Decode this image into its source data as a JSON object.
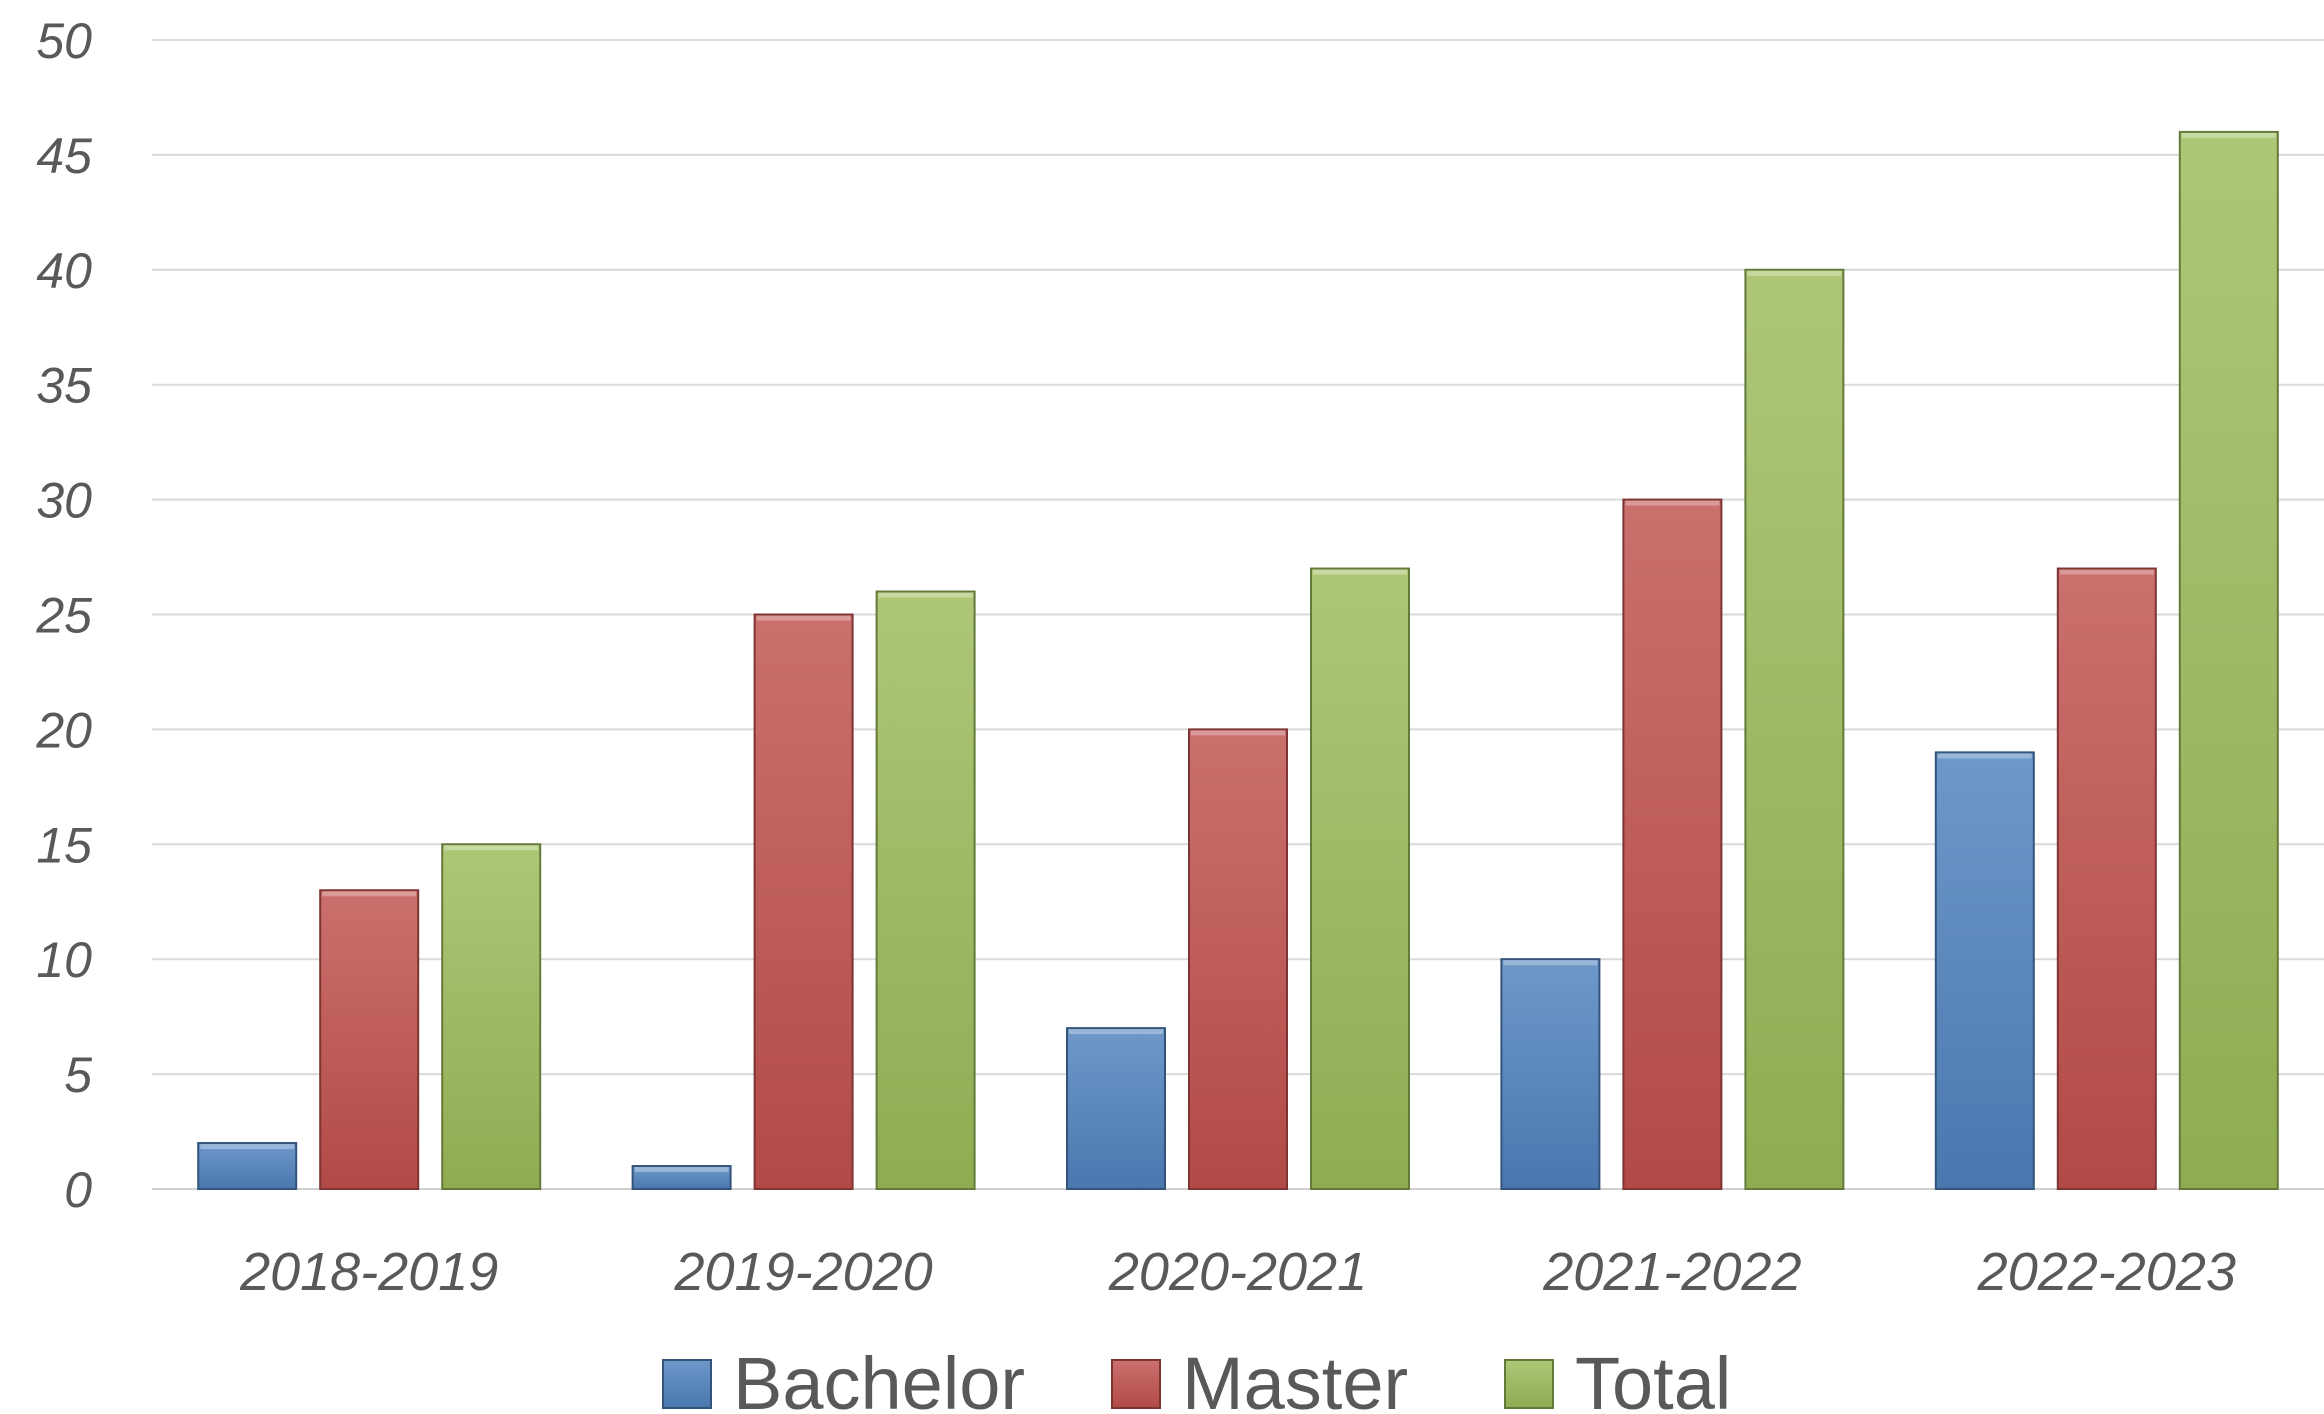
{
  "chart_data": {
    "type": "bar",
    "title": "",
    "xlabel": "",
    "ylabel": "",
    "categories": [
      "2018-2019",
      "2019-2020",
      "2020-2021",
      "2021-2022",
      "2022-2023"
    ],
    "series": [
      {
        "name": "Bachelor",
        "values": [
          2,
          1,
          7,
          10,
          19
        ],
        "color": "#4f81bd"
      },
      {
        "name": "Master",
        "values": [
          13,
          25,
          20,
          30,
          27
        ],
        "color": "#c0504d"
      },
      {
        "name": "Total",
        "values": [
          15,
          26,
          27,
          40,
          46
        ],
        "color": "#9bbb59"
      }
    ],
    "ylim": [
      0,
      50
    ],
    "yticks": [
      0,
      5,
      10,
      15,
      20,
      25,
      30,
      35,
      40,
      45,
      50
    ],
    "grid": true,
    "legend_position": "bottom"
  }
}
